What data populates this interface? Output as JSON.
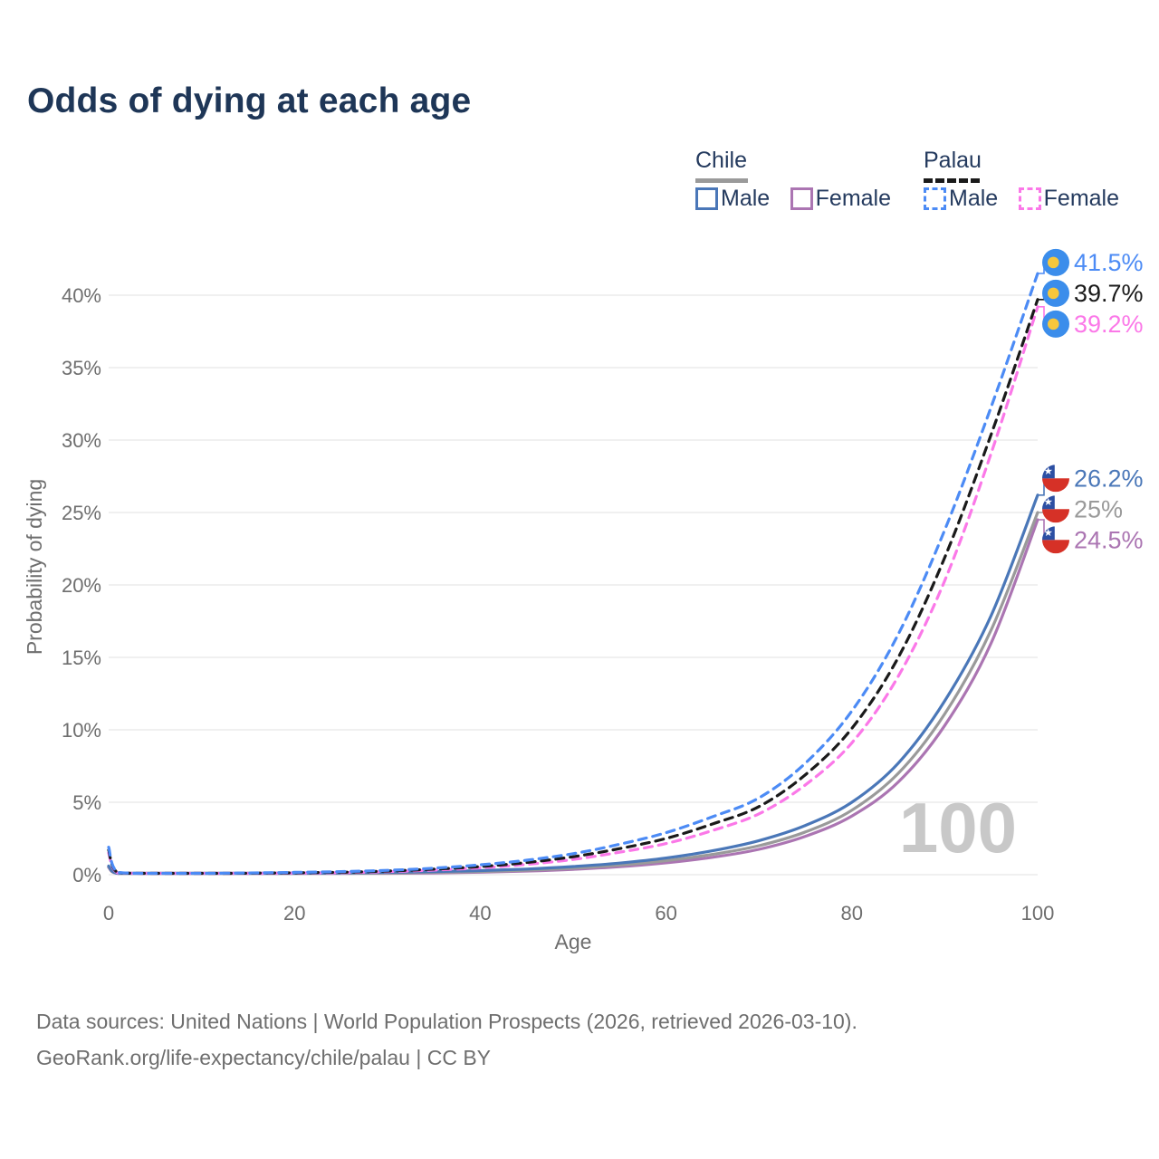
{
  "title": "Odds of dying at each age",
  "legend": {
    "groups": [
      {
        "label": "Chile",
        "line_style": "solid",
        "swatch_color": "#9a9a9a",
        "items": [
          {
            "label": "Male",
            "color": "#4a77b8"
          },
          {
            "label": "Female",
            "color": "#ab75b2"
          }
        ]
      },
      {
        "label": "Palau",
        "line_style": "dashed",
        "swatch_color": "#1a1a1a",
        "items": [
          {
            "label": "Male",
            "color": "#4c8bf5"
          },
          {
            "label": "Female",
            "color": "#fb78e8"
          }
        ]
      }
    ]
  },
  "axes": {
    "x": {
      "label": "Age",
      "ticks": [
        0,
        20,
        40,
        60,
        80,
        100
      ],
      "range": [
        0,
        100
      ]
    },
    "y": {
      "label": "Probability of dying",
      "ticks": [
        "0%",
        "5%",
        "10%",
        "15%",
        "20%",
        "25%",
        "30%",
        "35%",
        "40%"
      ],
      "tick_values": [
        0,
        5,
        10,
        15,
        20,
        25,
        30,
        35,
        40
      ],
      "range": [
        0,
        42.5
      ]
    }
  },
  "watermark_age": "100",
  "chart_data": {
    "type": "line",
    "title": "Odds of dying at each age",
    "xlabel": "Age",
    "ylabel": "Probability of dying",
    "xlim": [
      0,
      100
    ],
    "ylim": [
      0,
      42.5
    ],
    "grid": "horizontal",
    "x": [
      0,
      1,
      5,
      10,
      15,
      20,
      25,
      30,
      35,
      40,
      45,
      50,
      55,
      60,
      65,
      70,
      75,
      80,
      85,
      90,
      95,
      100
    ],
    "series": [
      {
        "country": "Palau",
        "group": "male",
        "dash": true,
        "color": "#4c8bf5",
        "flag": "palau",
        "end_label": "41.5%",
        "values": [
          1.9,
          0.16,
          0.07,
          0.08,
          0.12,
          0.16,
          0.21,
          0.3,
          0.45,
          0.68,
          1.0,
          1.45,
          2.1,
          2.9,
          4.0,
          5.3,
          7.7,
          11.3,
          16.6,
          23.8,
          32.3,
          41.5
        ]
      },
      {
        "country": "Palau",
        "group": "all",
        "dash": true,
        "color": "#1a1a1a",
        "flag": "palau",
        "end_label": "39.7%",
        "values": [
          1.7,
          0.14,
          0.06,
          0.07,
          0.1,
          0.13,
          0.17,
          0.25,
          0.38,
          0.56,
          0.84,
          1.24,
          1.8,
          2.5,
          3.5,
          4.7,
          6.9,
          10.1,
          15.0,
          21.9,
          30.4,
          39.7
        ]
      },
      {
        "country": "Palau",
        "group": "female",
        "dash": true,
        "color": "#fb78e8",
        "flag": "palau",
        "end_label": "39.2%",
        "values": [
          1.5,
          0.12,
          0.05,
          0.06,
          0.08,
          0.11,
          0.14,
          0.21,
          0.32,
          0.47,
          0.71,
          1.05,
          1.55,
          2.15,
          3.05,
          4.2,
          6.2,
          9.1,
          13.7,
          20.3,
          29.1,
          39.2
        ]
      },
      {
        "country": "Chile",
        "group": "male",
        "dash": false,
        "color": "#4a77b8",
        "flag": "chile",
        "end_label": "26.2%",
        "values": [
          0.6,
          0.04,
          0.02,
          0.03,
          0.06,
          0.09,
          0.12,
          0.16,
          0.21,
          0.28,
          0.39,
          0.56,
          0.8,
          1.15,
          1.65,
          2.35,
          3.4,
          5.0,
          7.7,
          12.0,
          17.9,
          26.2
        ]
      },
      {
        "country": "Chile",
        "group": "all",
        "dash": false,
        "color": "#9a9a9a",
        "flag": "chile",
        "end_label": "25%",
        "values": [
          0.55,
          0.035,
          0.02,
          0.025,
          0.05,
          0.07,
          0.09,
          0.12,
          0.16,
          0.22,
          0.31,
          0.45,
          0.66,
          0.97,
          1.4,
          2.0,
          2.95,
          4.45,
          7.0,
          11.1,
          16.9,
          25.0
        ]
      },
      {
        "country": "Chile",
        "group": "female",
        "dash": false,
        "color": "#ab75b2",
        "flag": "chile",
        "end_label": "24.5%",
        "values": [
          0.5,
          0.03,
          0.015,
          0.02,
          0.035,
          0.05,
          0.07,
          0.09,
          0.12,
          0.17,
          0.25,
          0.37,
          0.55,
          0.82,
          1.2,
          1.75,
          2.65,
          4.05,
          6.4,
          10.3,
          16.0,
          24.5
        ]
      }
    ]
  },
  "footer": {
    "line1": "Data sources: United Nations | World Population Prospects (2026, retrieved 2026-03-10).",
    "line2": "GeoRank.org/life-expectancy/chile/palau | CC BY"
  },
  "colors": {
    "background": "#ffffff",
    "title_text": "#1e3657",
    "legend_text": "#243a5e",
    "axis_text": "#6e6e6e",
    "gridline": "#ececec",
    "watermark": "#c8c8c8",
    "palau_flag_blue": "#3b8deb",
    "palau_flag_yellow": "#f7c73c",
    "chile_flag_blue": "#2c4fa3",
    "chile_flag_red": "#d63127",
    "chile_flag_white": "#ffffff"
  }
}
